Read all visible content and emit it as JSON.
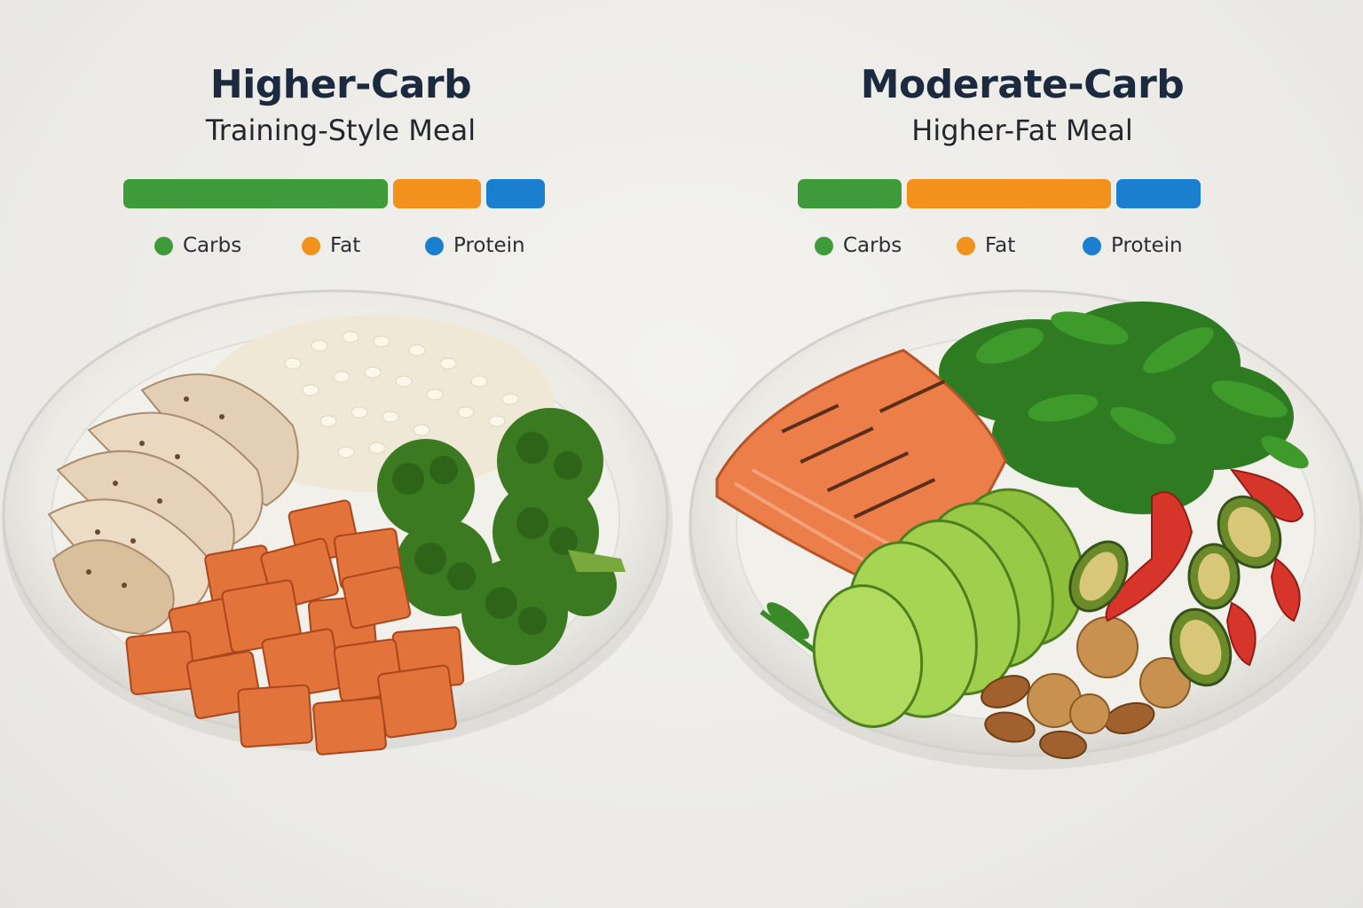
{
  "left_panel": {
    "title": "Higher-Carb",
    "subtitle": "Training-Style Meal",
    "bar": {
      "carbs": 0.63,
      "fat": 0.21,
      "protein": 0.14
    },
    "legend": {
      "carbs": "Carbs",
      "fat": "Fat",
      "protein": "Protein"
    },
    "plate_foods": [
      "chicken-breast",
      "rice",
      "broccoli",
      "sweet-potato"
    ]
  },
  "right_panel": {
    "title": "Moderate-Carb",
    "subtitle": "Higher-Fat Meal",
    "bar": {
      "carbs": 0.26,
      "fat": 0.51,
      "protein": 0.21
    },
    "legend": {
      "carbs": "Carbs",
      "fat": "Fat",
      "protein": "Protein"
    },
    "plate_foods": [
      "salmon",
      "arugula",
      "avocado",
      "walnuts-almonds",
      "zucchini-peppers"
    ]
  },
  "colors": {
    "carbs": "#3f9b3a",
    "fat": "#f2911b",
    "protein": "#1a7fcf",
    "title": "#1b2a3e"
  }
}
